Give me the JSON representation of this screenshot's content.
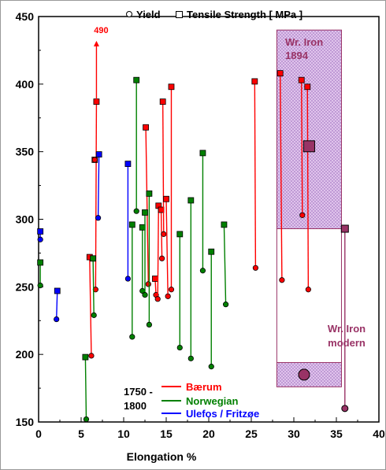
{
  "chart_data": {
    "type": "scatter",
    "title": "",
    "xlabel": "Elongation  %",
    "ylabel": "",
    "xlim": [
      0,
      40
    ],
    "ylim": [
      150,
      450
    ],
    "xticks": [
      0,
      5,
      10,
      15,
      20,
      25,
      30,
      35,
      40
    ],
    "yticks": [
      150,
      200,
      250,
      300,
      350,
      400,
      450
    ],
    "grid": false,
    "legend_top": {
      "yield_label": "Yield",
      "tensile_label": "Tensile Strength  [ MPa ]",
      "yield_marker": "circle",
      "tensile_marker": "square"
    },
    "legend_series": {
      "period": "1750 -\n1800",
      "period_line1": "1750 -",
      "period_line2": "1800",
      "placement": "bottom-center"
    },
    "series": [
      {
        "name": "Bærum",
        "color": "#ff0000",
        "pairs": [
          [
            6.2,
            199,
            6.0,
            272
          ],
          [
            6.7,
            248,
            6.8,
            387
          ],
          [
            6.6,
            344,
            6.6,
            344
          ],
          [
            12.9,
            252,
            12.6,
            368
          ],
          [
            13.8,
            244,
            13.7,
            256
          ],
          [
            14.0,
            241,
            14.1,
            310
          ],
          [
            14.5,
            271,
            14.4,
            307
          ],
          [
            14.7,
            289,
            14.6,
            387
          ],
          [
            15.2,
            243,
            15.0,
            315
          ],
          [
            15.6,
            248,
            15.6,
            398
          ],
          [
            25.5,
            264,
            25.4,
            402
          ],
          [
            28.6,
            255,
            28.4,
            408
          ],
          [
            31.0,
            303,
            30.9,
            403
          ],
          [
            31.7,
            248,
            31.6,
            398
          ]
        ],
        "annotation": {
          "text": "490",
          "x": 6.8,
          "y_from": 387,
          "y_to": 432
        }
      },
      {
        "name": "Norwegian",
        "color": "#008000",
        "pairs": [
          [
            0.2,
            251,
            0.2,
            268
          ],
          [
            5.6,
            152,
            5.5,
            198
          ],
          [
            6.5,
            229,
            6.4,
            271
          ],
          [
            11.0,
            213,
            11.0,
            296
          ],
          [
            11.5,
            306,
            11.5,
            403
          ],
          [
            12.2,
            247,
            12.2,
            294
          ],
          [
            12.5,
            244,
            12.5,
            305
          ],
          [
            13.0,
            222,
            13.0,
            319
          ],
          [
            16.6,
            205,
            16.6,
            289
          ],
          [
            17.9,
            197,
            17.9,
            314
          ],
          [
            19.3,
            262,
            19.3,
            349
          ],
          [
            20.3,
            191,
            20.3,
            276
          ],
          [
            22.0,
            237,
            21.8,
            296
          ]
        ]
      },
      {
        "name": "Ulefos / Fritzøe",
        "color": "#0000ff",
        "pairs": [
          [
            0.2,
            285,
            0.2,
            291
          ],
          [
            2.1,
            226,
            2.2,
            247
          ],
          [
            7.0,
            301,
            7.1,
            348
          ],
          [
            10.5,
            256,
            10.5,
            341
          ]
        ]
      }
    ],
    "reference": {
      "color": "#993366",
      "fill": "#cc99cc",
      "wr_iron_1894": {
        "label_line1": "Wr. Iron",
        "label_line2": "1894",
        "tensile_range": [
          293,
          440
        ],
        "yield_range": [
          176,
          194
        ],
        "x_range": [
          28,
          35.6
        ],
        "tensile_mean": [
          31.8,
          354
        ],
        "yield_mean": [
          31.2,
          185
        ]
      },
      "wr_iron_modern": {
        "label_line1": "Wr. Iron",
        "label_line2": "modern",
        "tensile": [
          36.0,
          293
        ],
        "yield": [
          36.0,
          160
        ]
      }
    }
  }
}
